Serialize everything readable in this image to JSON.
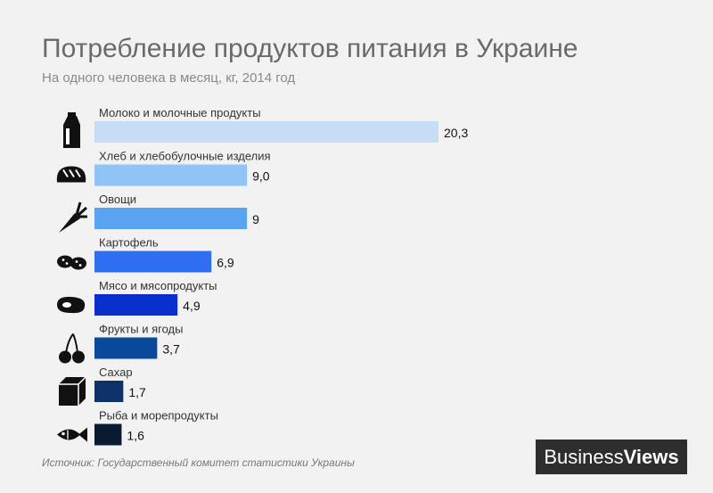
{
  "chart_data": {
    "type": "bar",
    "orientation": "horizontal",
    "title": "Потребление продуктов питания в Украине",
    "subtitle": "На одного человека в месяц, кг,  2014 год",
    "categories": [
      "Молоко и молочные продукты",
      "Хлеб и хлебобулочные изделия",
      "Овощи",
      "Картофель",
      "Мясо и мясопродукты",
      "Фрукты и ягоды",
      "Сахар",
      "Рыба и морепродукты"
    ],
    "values": [
      20.3,
      9.0,
      9.0,
      6.9,
      4.9,
      3.7,
      1.7,
      1.6
    ],
    "value_labels": [
      "20,3",
      "9,0",
      "9",
      "6,9",
      "4,9",
      "3,7",
      "1,7",
      "1,6"
    ],
    "icons": [
      "milk-carton-icon",
      "bread-icon",
      "carrot-icon",
      "potato-icon",
      "steak-icon",
      "cherry-icon",
      "sugar-cube-icon",
      "fish-icon"
    ],
    "colors": [
      "#c7dcf7",
      "#90c3f7",
      "#5aa3f2",
      "#2f6ef0",
      "#0b2fcc",
      "#0a4a9c",
      "#0d3168",
      "#0b1a30"
    ],
    "xlim": [
      0,
      20.3
    ]
  },
  "source": "Источник:  Государственный комитет статистики Украины",
  "logo": {
    "word1": "Business",
    "word2": "Views"
  }
}
